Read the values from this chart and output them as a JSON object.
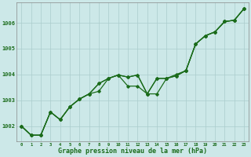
{
  "title": "Graphe pression niveau de la mer (hPa)",
  "bg_color": "#cce8e8",
  "grid_color": "#aacccc",
  "line_color": "#1a6b1a",
  "xlim": [
    -0.5,
    23.5
  ],
  "ylim": [
    1001.4,
    1006.8
  ],
  "yticks": [
    1002,
    1003,
    1004,
    1005,
    1006
  ],
  "xticks": [
    0,
    1,
    2,
    3,
    4,
    5,
    6,
    7,
    8,
    9,
    10,
    11,
    12,
    13,
    14,
    15,
    16,
    17,
    18,
    19,
    20,
    21,
    22,
    23
  ],
  "series": [
    [
      1002.0,
      1001.65,
      1001.65,
      1002.55,
      1002.25,
      1002.75,
      1003.05,
      1003.25,
      1003.65,
      1003.85,
      1003.98,
      1003.9,
      1003.98,
      1003.25,
      1003.25,
      1003.85,
      1004.0,
      1004.15,
      1005.18,
      1005.5,
      1005.65,
      1006.05,
      1006.1,
      1006.55
    ],
    [
      1002.0,
      1001.65,
      1001.65,
      1002.55,
      1002.25,
      1002.75,
      1003.05,
      1003.25,
      1003.35,
      1003.85,
      1003.98,
      1003.55,
      1003.55,
      1003.25,
      1003.85,
      1003.85,
      1003.95,
      1004.15,
      1005.18,
      1005.5,
      1005.65,
      1006.05,
      1006.1,
      1006.55
    ],
    [
      1002.0,
      1001.65,
      1001.65,
      1002.55,
      1002.25,
      1002.75,
      1003.05,
      1003.25,
      1003.65,
      1003.85,
      1003.98,
      1003.9,
      1003.98,
      1003.25,
      1003.85,
      1003.85,
      1003.95,
      1004.15,
      1005.18,
      1005.5,
      1005.65,
      1006.05,
      1006.1,
      1006.55
    ]
  ]
}
